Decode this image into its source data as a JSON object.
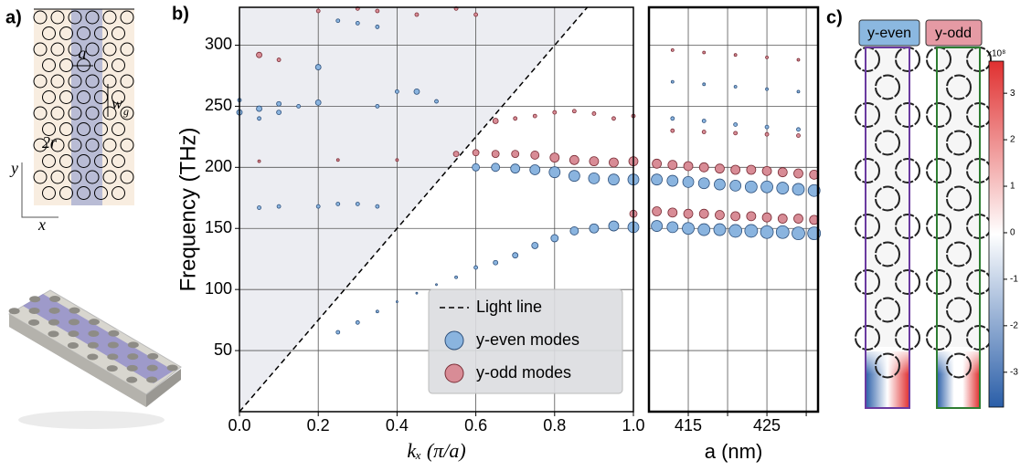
{
  "figure": {
    "panel_labels": [
      "a)",
      "b)",
      "c)"
    ],
    "diagram": {
      "a": "a",
      "w": "w",
      "g": "g",
      "r": "2r",
      "y": "y",
      "x": "x"
    },
    "field_labels": [
      "y-even",
      "y-odd"
    ]
  },
  "chart_data": [
    {
      "type": "scatter",
      "x_label": "kₓ (π/a)",
      "y_label": "Frequency (THz)",
      "xlim": [
        0,
        1
      ],
      "ylim": [
        0,
        331
      ],
      "xticks": [
        {
          "value": 0,
          "label": "0.0"
        },
        {
          "value": 0.2,
          "label": "0.2"
        },
        {
          "value": 0.4,
          "label": "0.4"
        },
        {
          "value": 0.6,
          "label": "0.6"
        },
        {
          "value": 0.8,
          "label": "0.8"
        },
        {
          "value": 1,
          "label": "1.0"
        }
      ],
      "yticks": [
        50,
        100,
        150,
        200,
        250,
        300
      ],
      "grid": true,
      "legend": "bottom-right",
      "series": [
        {
          "name": "Light line",
          "style": "dashed",
          "color": "#000000",
          "x": [
            0,
            0.883
          ],
          "values": [
            0,
            331
          ]
        },
        {
          "name": "y-even modes",
          "color": "#8ab4df",
          "x": [
            0.25,
            0.3,
            0.35,
            0.4,
            0.45,
            0.5,
            0.55,
            0.6,
            0.65,
            0.7,
            0.75,
            0.8,
            0.85,
            0.9,
            0.95,
            1.0,
            0.6,
            0.65,
            0.7,
            0.75,
            0.8,
            0.85,
            0.9,
            0.95,
            1.0,
            0,
            0,
            0.05,
            0.05,
            0.1,
            0.1,
            0.15,
            0.2,
            0.2,
            0.25,
            0.3,
            0.35,
            0.35,
            0.4,
            0.45,
            0.5,
            0.05,
            0.1,
            0.2,
            0.25,
            0.3,
            0.35
          ],
          "values": [
            65,
            73,
            82,
            90,
            97,
            104,
            110,
            118,
            122,
            128,
            136,
            142,
            148,
            150,
            152,
            151,
            200,
            200,
            199,
            198,
            196,
            193,
            191,
            190,
            190,
            245,
            255,
            240,
            248,
            245,
            252,
            250,
            253,
            282,
            320,
            318,
            315,
            250,
            262,
            262,
            254,
            167,
            168,
            168,
            170,
            170,
            168
          ],
          "sizes": [
            2,
            2,
            1.5,
            1,
            1,
            1,
            1.5,
            2,
            2.5,
            3,
            3.5,
            4,
            4.5,
            5,
            5.5,
            6,
            4,
            4.5,
            5,
            5.5,
            6,
            6,
            6,
            6,
            6,
            3,
            2,
            2,
            3,
            2.5,
            2.5,
            2,
            3,
            3,
            2,
            2,
            2,
            2,
            2,
            3,
            2,
            2,
            2,
            2,
            2,
            2,
            2
          ]
        },
        {
          "name": "y-odd modes",
          "color": "#d88c96",
          "x": [
            0.55,
            0.6,
            0.65,
            0.7,
            0.75,
            0.8,
            0.85,
            0.9,
            0.95,
            1.0,
            1.0,
            0.05,
            0.1,
            0.2,
            0.3,
            0.35,
            0.45,
            0.55,
            0.6,
            0.65,
            0.7,
            0.75,
            0.8,
            0.85,
            0.9,
            0.95,
            1.0,
            0.05,
            0.25,
            0.4
          ],
          "values": [
            211,
            212,
            211,
            211,
            210,
            208,
            206,
            205,
            204,
            205,
            162,
            292,
            288,
            328,
            330,
            328,
            325,
            330,
            325,
            238,
            240,
            242,
            245,
            246,
            244,
            240,
            242,
            205,
            206,
            206
          ],
          "sizes": [
            3,
            3.5,
            4,
            4,
            4.5,
            5,
            5,
            5,
            5,
            5,
            4,
            3,
            2,
            2,
            2,
            2,
            2,
            2,
            2,
            3,
            2,
            2,
            2,
            2,
            2,
            2,
            2,
            1.5,
            1.5,
            1.5
          ]
        }
      ]
    },
    {
      "type": "scatter",
      "x_label": "a (nm)",
      "xlim": [
        410,
        431.5
      ],
      "ylim": [
        0,
        331
      ],
      "xticks": [
        415,
        425
      ],
      "minor_xticks": [
        420,
        430
      ],
      "ygrid": [
        50,
        100,
        150,
        200,
        250,
        300
      ],
      "grid": true,
      "series": [
        {
          "color": "#8ab4df",
          "x": [
            411,
            413,
            415,
            417,
            419,
            421,
            423,
            425,
            427,
            429,
            431,
            411,
            413,
            415,
            417,
            419,
            421,
            423,
            425,
            427,
            429,
            431,
            413,
            417,
            421,
            425,
            429,
            413,
            417,
            421,
            425,
            429
          ],
          "values": [
            152,
            151,
            150,
            149,
            149,
            148,
            148,
            147,
            147,
            146,
            146,
            190,
            189,
            188,
            187,
            186,
            185,
            184,
            184,
            183,
            182,
            181,
            240,
            238,
            235,
            233,
            231,
            270,
            268,
            266,
            264,
            262
          ],
          "sizes": [
            6,
            6,
            6.5,
            6.5,
            6.5,
            7,
            7,
            7,
            7,
            7,
            7,
            6,
            6,
            6,
            6,
            6,
            6,
            6.5,
            6.5,
            6.5,
            6.5,
            6.5,
            2,
            2,
            2,
            2,
            2,
            1.5,
            1.5,
            1.5,
            1.5,
            1.5
          ]
        },
        {
          "color": "#d88c96",
          "x": [
            411,
            413,
            415,
            417,
            419,
            421,
            423,
            425,
            427,
            429,
            431,
            411,
            413,
            415,
            417,
            419,
            421,
            423,
            425,
            427,
            429,
            431,
            413,
            417,
            421,
            425,
            429,
            413,
            417,
            421,
            425,
            429
          ],
          "values": [
            164,
            163,
            162,
            162,
            161,
            160,
            160,
            159,
            158,
            158,
            157,
            203,
            202,
            201,
            200,
            199,
            198,
            198,
            197,
            196,
            195,
            194,
            230,
            229,
            228,
            227,
            226,
            296,
            294,
            292,
            290,
            288
          ],
          "sizes": [
            5,
            5,
            5,
            5,
            5,
            5,
            5,
            5,
            5,
            5,
            5,
            5,
            5,
            5,
            5,
            5,
            5,
            5,
            5,
            5,
            5,
            5,
            2,
            2,
            2,
            2,
            2,
            1.5,
            1.5,
            1.5,
            1.5,
            1.5
          ]
        }
      ]
    },
    {
      "type": "colorbar",
      "title": "x10⁸",
      "ylim": [
        -3.75,
        3.69
      ],
      "yticks": [
        3,
        2,
        1,
        0,
        -1,
        -2,
        -3
      ],
      "colors": [
        "#2a5ea8",
        "#ffffff",
        "#e03030"
      ]
    }
  ]
}
